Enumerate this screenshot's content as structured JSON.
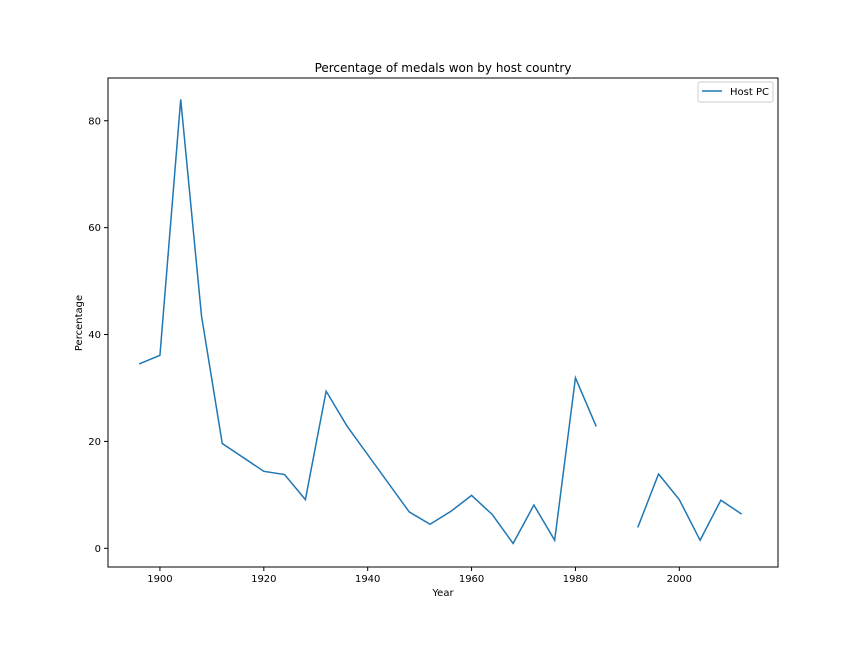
{
  "chart_data": {
    "type": "line",
    "title": "Percentage of medals won by host country",
    "xlabel": "Year",
    "ylabel": "Percentage",
    "xlim": [
      1890,
      2019
    ],
    "ylim": [
      -3.5,
      88
    ],
    "xticks": [
      1900,
      1920,
      1940,
      1960,
      1980,
      2000
    ],
    "yticks": [
      0,
      20,
      40,
      60,
      80
    ],
    "legend_position": "top-right",
    "grid": false,
    "series": [
      {
        "name": "Host PC",
        "color": "#1f77b4",
        "x": [
          1896,
          1900,
          1904,
          1908,
          1912,
          1920,
          1924,
          1928,
          1932,
          1936,
          1948,
          1952,
          1956,
          1960,
          1964,
          1968,
          1972,
          1976,
          1980,
          1984,
          1988,
          1992,
          1996,
          2000,
          2004,
          2008,
          2012
        ],
        "y": [
          34.5,
          36.1,
          84.0,
          43.5,
          19.6,
          14.4,
          13.8,
          9.1,
          29.4,
          22.9,
          6.8,
          4.5,
          6.9,
          9.9,
          6.3,
          0.9,
          8.1,
          1.5,
          31.9,
          22.8,
          null,
          3.9,
          13.9,
          9.1,
          1.5,
          9.0,
          6.4
        ]
      }
    ]
  }
}
